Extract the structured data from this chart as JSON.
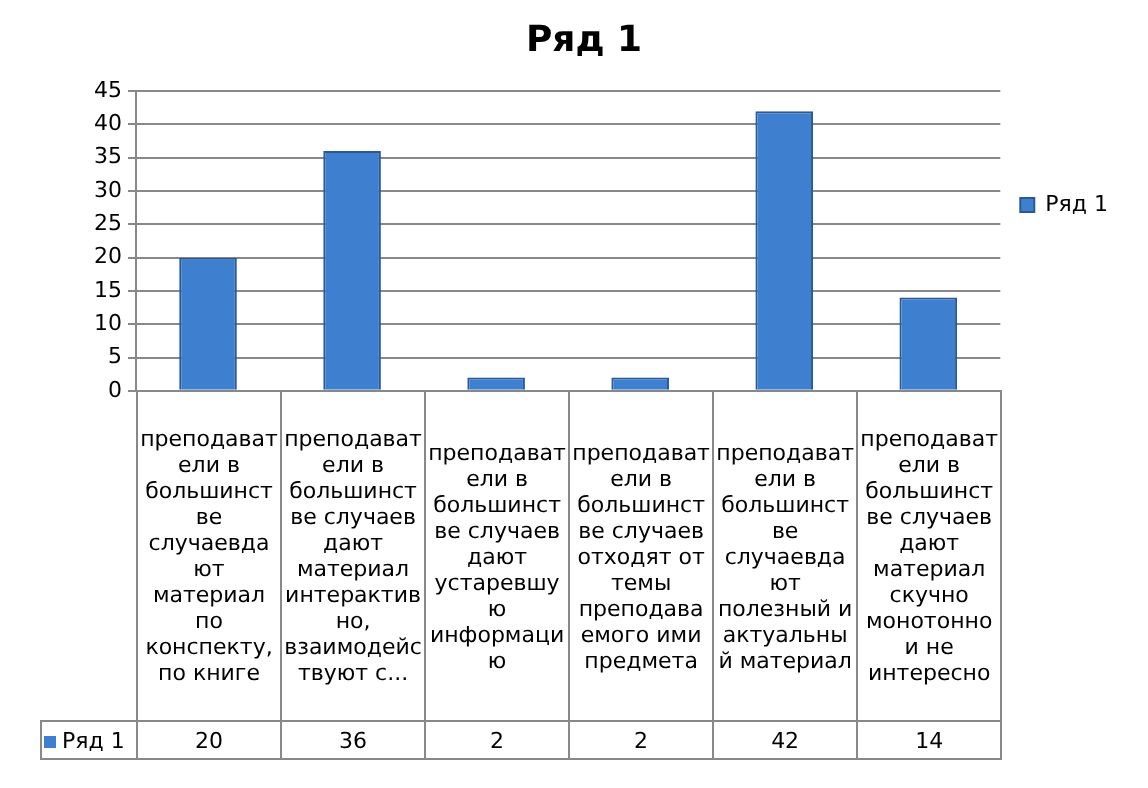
{
  "chart_data": {
    "type": "bar",
    "title": "Ряд 1",
    "categories": [
      "преподаватели в большинстве случаевдают материал по конспекту, по книге",
      "преподаватели в большинстве случаев дают материал интерактивно, взаимодействуют с...",
      "преподаватели в большинстве случаев дают устаревшую информацию",
      "преподаватели в большинстве случаев отходят от темы преподаваемого ими предмета",
      "преподаватели в большинстве случаевдают полезный и актуальный материал",
      "преподаватели в большинстве случаев дают материал скучно монотонно и не интересно"
    ],
    "series": [
      {
        "name": "Ряд 1",
        "color": "#3f7fcf",
        "values": [
          20,
          36,
          2,
          2,
          42,
          14
        ]
      }
    ],
    "ylim": [
      0,
      45
    ],
    "yticks": [
      0,
      5,
      10,
      15,
      20,
      25,
      30,
      35,
      40,
      45
    ],
    "grid": "y",
    "legend": "right",
    "data_labels": true
  }
}
